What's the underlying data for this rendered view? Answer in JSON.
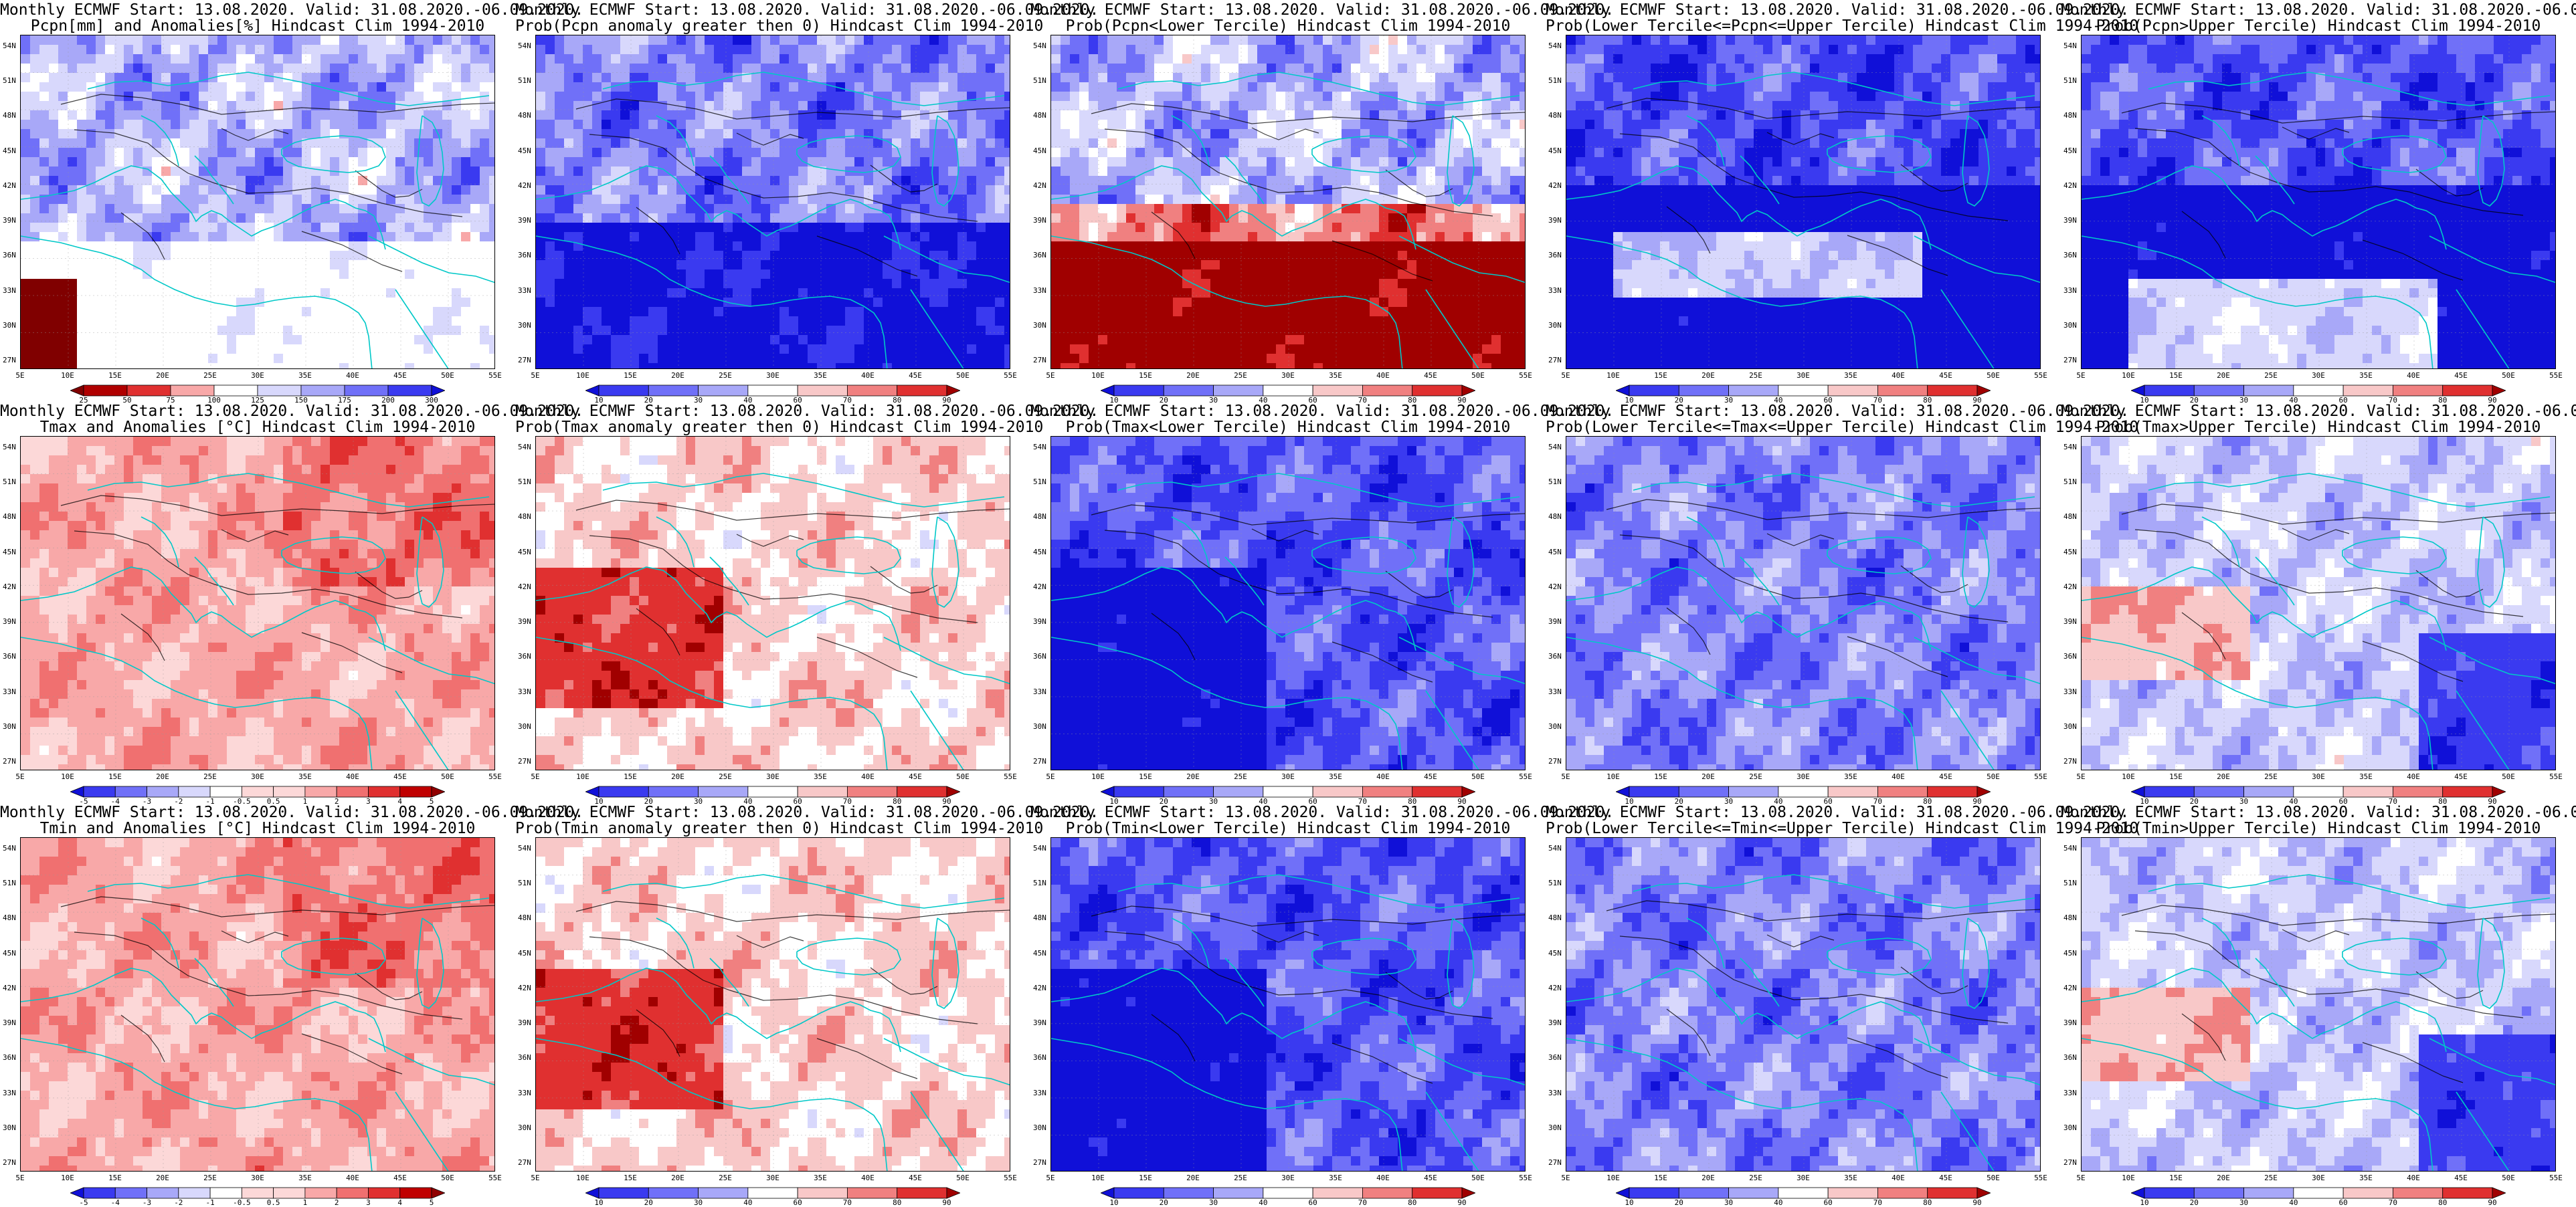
{
  "x_ticks": [
    "5E",
    "10E",
    "15E",
    "20E",
    "25E",
    "30E",
    "35E",
    "40E",
    "45E",
    "50E",
    "55E"
  ],
  "y_ticks": [
    "54N",
    "51N",
    "48N",
    "45N",
    "42N",
    "39N",
    "36N",
    "33N",
    "30N",
    "27N"
  ],
  "header_line": "Monthly ECMWF Start: 13.08.2020. Valid: 31.08.2020.-06.09.2020.",
  "rows": [
    {
      "variable": "pcpn",
      "panels": [
        {
          "title": "Pcpn[mm] and Anomalies[%] Hindcast Clim 1994-2010",
          "colorbar": [
            "25",
            "50",
            "75",
            "100",
            "125",
            "150",
            "175",
            "200",
            "300"
          ],
          "palette": "anom",
          "style": "pcpn"
        },
        {
          "title": "Prob(Pcpn anomaly greater then 0) Hindcast Clim 1994-2010",
          "colorbar": [
            "10",
            "20",
            "30",
            "40",
            "60",
            "70",
            "80",
            "90"
          ],
          "palette": "prob",
          "style": "p_gt"
        },
        {
          "title": "Prob(Pcpn<Lower Tercile) Hindcast Clim 1994-2010",
          "colorbar": [
            "10",
            "20",
            "30",
            "40",
            "60",
            "70",
            "80",
            "90"
          ],
          "palette": "prob",
          "style": "p_lower"
        },
        {
          "title": "Prob(Lower Tercile<=Pcpn<=Upper Tercile) Hindcast Clim 1994-2010",
          "colorbar": [
            "10",
            "20",
            "30",
            "40",
            "60",
            "70",
            "80",
            "90"
          ],
          "palette": "prob",
          "style": "p_mid"
        },
        {
          "title": "Prob(Pcpn>Upper Tercile) Hindcast Clim 1994-2010",
          "colorbar": [
            "10",
            "20",
            "30",
            "40",
            "60",
            "70",
            "80",
            "90"
          ],
          "palette": "prob",
          "style": "p_upper"
        }
      ]
    },
    {
      "variable": "tmax",
      "panels": [
        {
          "title": "Tmax and Anomalies [°C] Hindcast Clim 1994-2010",
          "colorbar": [
            "-5",
            "-4",
            "-3",
            "-2",
            "-1",
            "-0.5",
            "0.5",
            "1",
            "2",
            "3",
            "4",
            "5"
          ],
          "palette": "temp",
          "style": "t_anom"
        },
        {
          "title": "Prob(Tmax anomaly greater then 0) Hindcast Clim 1994-2010",
          "colorbar": [
            "10",
            "20",
            "30",
            "40",
            "60",
            "70",
            "80",
            "90"
          ],
          "palette": "prob",
          "style": "t_gt"
        },
        {
          "title": "Prob(Tmax<Lower Tercile) Hindcast Clim 1994-2010",
          "colorbar": [
            "10",
            "20",
            "30",
            "40",
            "60",
            "70",
            "80",
            "90"
          ],
          "palette": "prob",
          "style": "t_lower"
        },
        {
          "title": "Prob(Lower Tercile<=Tmax<=Upper Tercile) Hindcast Clim 1994-2010",
          "colorbar": [
            "10",
            "20",
            "30",
            "40",
            "60",
            "70",
            "80",
            "90"
          ],
          "palette": "prob",
          "style": "t_mid"
        },
        {
          "title": "Prob(Tmax>Upper Tercile) Hindcast Clim 1994-2010",
          "colorbar": [
            "10",
            "20",
            "30",
            "40",
            "60",
            "70",
            "80",
            "90"
          ],
          "palette": "prob",
          "style": "t_upper"
        }
      ]
    },
    {
      "variable": "tmin",
      "panels": [
        {
          "title": "Tmin and Anomalies [°C] Hindcast Clim 1994-2010",
          "colorbar": [
            "-5",
            "-4",
            "-3",
            "-2",
            "-1",
            "-0.5",
            "0.5",
            "1",
            "2",
            "3",
            "4",
            "5"
          ],
          "palette": "temp",
          "style": "t_anom"
        },
        {
          "title": "Prob(Tmin anomaly greater then 0) Hindcast Clim 1994-2010",
          "colorbar": [
            "10",
            "20",
            "30",
            "40",
            "60",
            "70",
            "80",
            "90"
          ],
          "palette": "prob",
          "style": "t_gt"
        },
        {
          "title": "Prob(Tmin<Lower Tercile) Hindcast Clim 1994-2010",
          "colorbar": [
            "10",
            "20",
            "30",
            "40",
            "60",
            "70",
            "80",
            "90"
          ],
          "palette": "prob",
          "style": "t_lower"
        },
        {
          "title": "Prob(Lower Tercile<=Tmin<=Upper Tercile) Hindcast Clim 1994-2010",
          "colorbar": [
            "10",
            "20",
            "30",
            "40",
            "60",
            "70",
            "80",
            "90"
          ],
          "palette": "prob",
          "style": "t_mid"
        },
        {
          "title": "Prob(Tmin>Upper Tercile) Hindcast Clim 1994-2010",
          "colorbar": [
            "10",
            "20",
            "30",
            "40",
            "60",
            "70",
            "80",
            "90"
          ],
          "palette": "prob",
          "style": "t_upper"
        }
      ]
    }
  ],
  "colors": {
    "coastline": "#00c8c8",
    "contour": "#000000",
    "prob_scale": [
      "#1010d8",
      "#3a3af0",
      "#7070f8",
      "#a8a8f8",
      "#d8d8fc",
      "#ffffff",
      "#f8c8c8",
      "#f08080",
      "#e03030",
      "#a00000"
    ],
    "temp_scale": [
      "#1010d8",
      "#3a3af0",
      "#7070f8",
      "#a8a8f8",
      "#d8d8fc",
      "#ffffff",
      "#fcd8d8",
      "#f8a8a8",
      "#f07070",
      "#e03030",
      "#c00000",
      "#900000"
    ],
    "anom_scale": [
      "#800000",
      "#b00000",
      "#e03030",
      "#f8a8a8",
      "#ffffff",
      "#d8d8fc",
      "#a8a8f8",
      "#7070f8",
      "#3a3af0",
      "#1010d8"
    ]
  }
}
